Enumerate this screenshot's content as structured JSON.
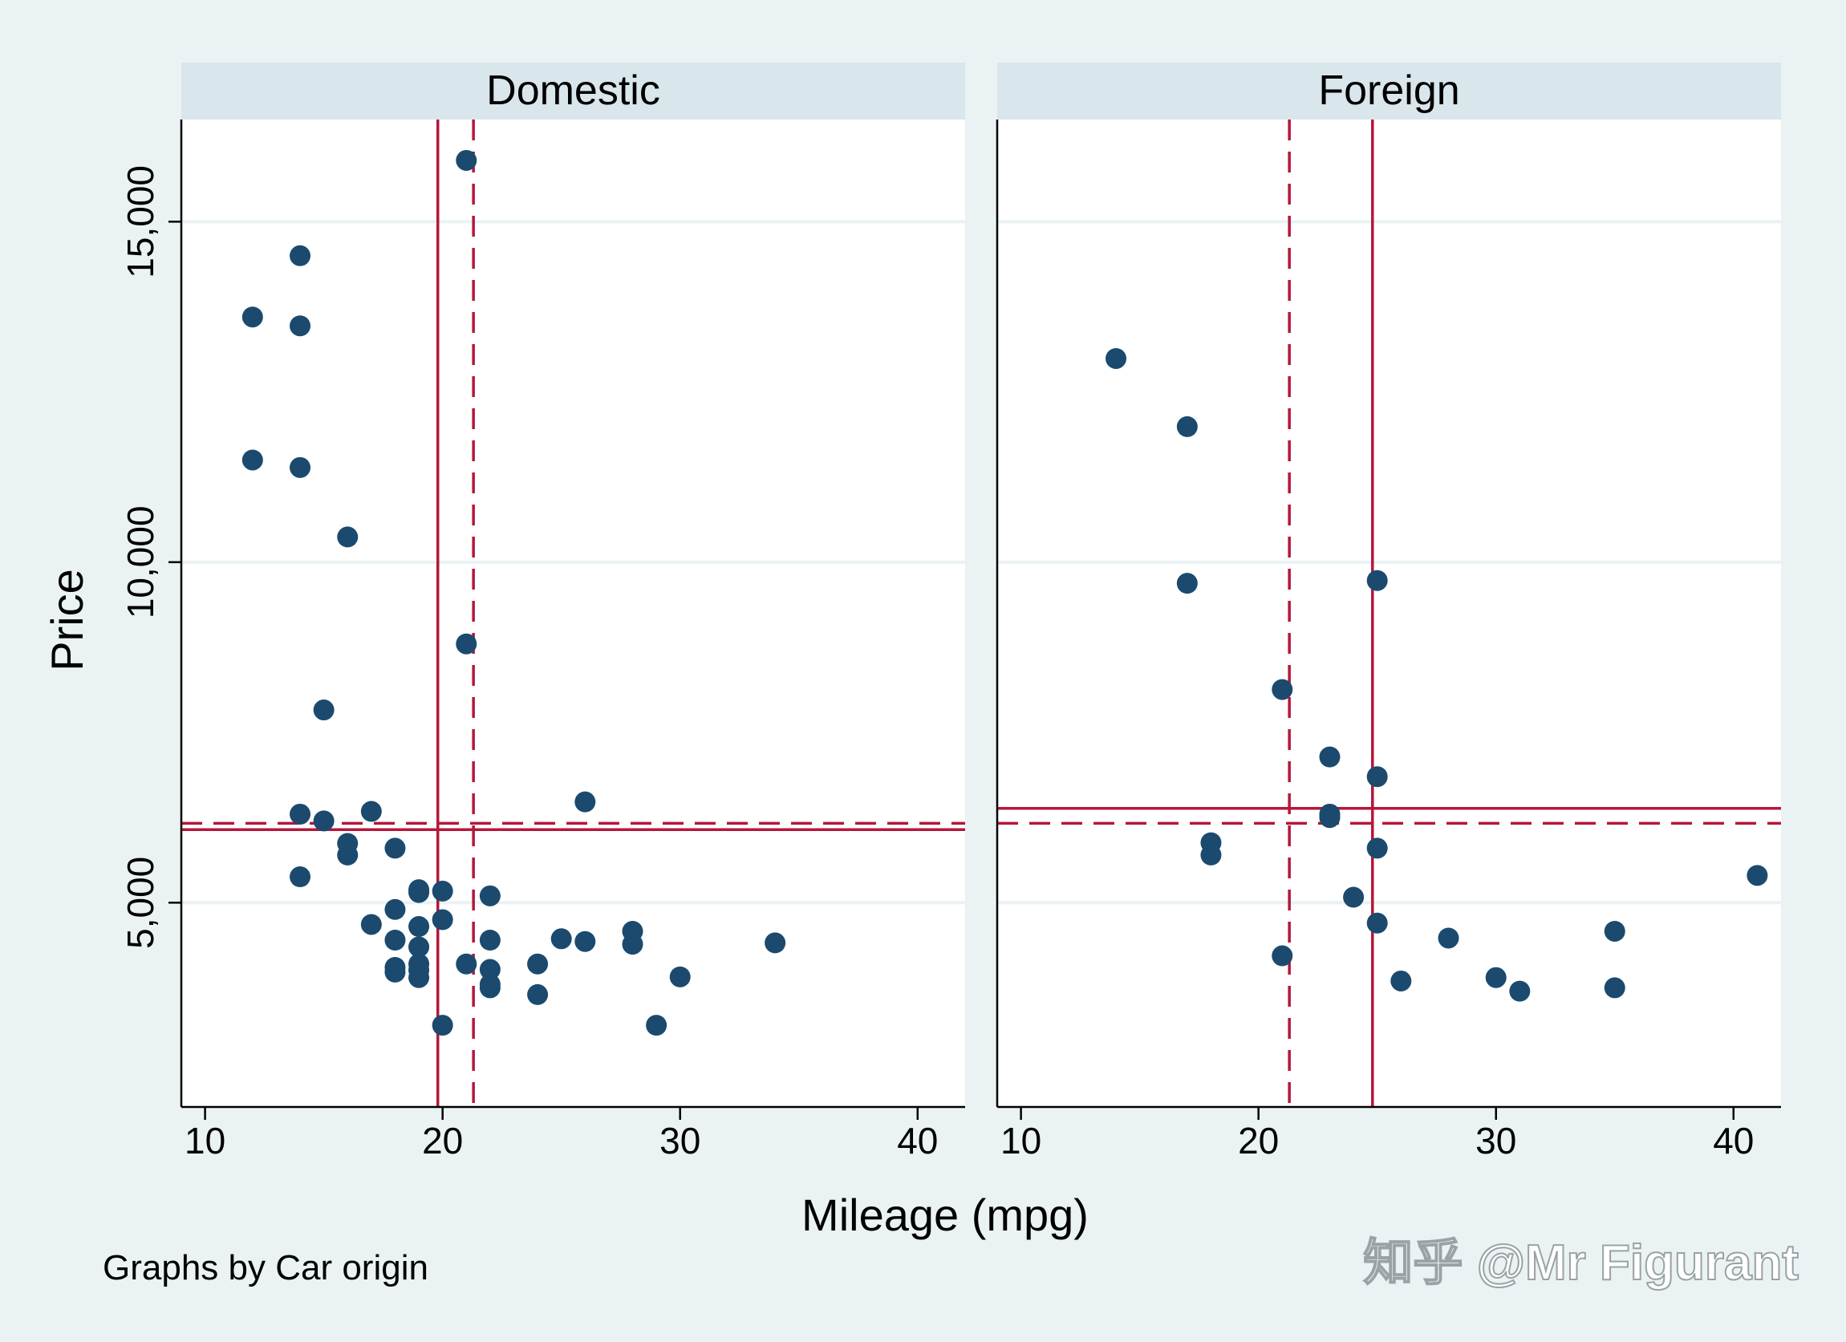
{
  "chart_data": {
    "type": "scatter",
    "ylabel": "Price",
    "xlabel": "Mileage (mpg)",
    "xlim": [
      9,
      42
    ],
    "ylim": [
      2000,
      16500
    ],
    "xticks": [
      10,
      20,
      30,
      40
    ],
    "yticks": [
      5000,
      10000,
      15000
    ],
    "ytick_labels": [
      "5,000",
      "10,000",
      "15,000"
    ],
    "grid": true,
    "colors": {
      "marker": "#1b4a6e",
      "reference_line": "#b5173a"
    },
    "panels": [
      {
        "title": "Domestic",
        "mean_mpg": 19.8,
        "median_mpg": 21.3,
        "mean_price": 6072,
        "median_price": 6166,
        "points": [
          [
            12,
            13600
          ],
          [
            12,
            11500
          ],
          [
            14,
            14500
          ],
          [
            14,
            13470
          ],
          [
            14,
            11390
          ],
          [
            14,
            6300
          ],
          [
            14,
            5380
          ],
          [
            15,
            7830
          ],
          [
            15,
            6200
          ],
          [
            16,
            10370
          ],
          [
            16,
            5870
          ],
          [
            16,
            5700
          ],
          [
            17,
            6340
          ],
          [
            17,
            4680
          ],
          [
            18,
            5800
          ],
          [
            18,
            4900
          ],
          [
            18,
            4450
          ],
          [
            18,
            4050
          ],
          [
            18,
            3980
          ],
          [
            19,
            5190
          ],
          [
            19,
            5150
          ],
          [
            19,
            4650
          ],
          [
            19,
            4350
          ],
          [
            19,
            4100
          ],
          [
            19,
            4010
          ],
          [
            19,
            3900
          ],
          [
            20,
            5170
          ],
          [
            20,
            4750
          ],
          [
            20,
            3200
          ],
          [
            21,
            15900
          ],
          [
            21,
            8800
          ],
          [
            21,
            4100
          ],
          [
            22,
            5100
          ],
          [
            22,
            4450
          ],
          [
            22,
            4020
          ],
          [
            22,
            3800
          ],
          [
            22,
            3750
          ],
          [
            24,
            4100
          ],
          [
            24,
            3650
          ],
          [
            25,
            4470
          ],
          [
            26,
            6480
          ],
          [
            26,
            4430
          ],
          [
            28,
            4580
          ],
          [
            28,
            4390
          ],
          [
            29,
            3200
          ],
          [
            30,
            3910
          ],
          [
            34,
            4410
          ]
        ]
      },
      {
        "title": "Foreign",
        "mean_mpg": 24.8,
        "median_mpg": 21.3,
        "mean_price": 6385,
        "median_price": 6166,
        "points": [
          [
            14,
            12990
          ],
          [
            17,
            11990
          ],
          [
            17,
            9690
          ],
          [
            18,
            5880
          ],
          [
            18,
            5700
          ],
          [
            21,
            8130
          ],
          [
            21,
            4220
          ],
          [
            23,
            7140
          ],
          [
            23,
            6300
          ],
          [
            23,
            6250
          ],
          [
            24,
            5080
          ],
          [
            25,
            9730
          ],
          [
            25,
            6850
          ],
          [
            25,
            5800
          ],
          [
            25,
            4700
          ],
          [
            26,
            3850
          ],
          [
            28,
            4480
          ],
          [
            30,
            3900
          ],
          [
            31,
            3700
          ],
          [
            35,
            4580
          ],
          [
            35,
            3750
          ],
          [
            41,
            5400
          ]
        ]
      }
    ]
  },
  "footer": {
    "note": "Graphs by Car origin",
    "watermark": "知乎 @Mr Figurant"
  }
}
